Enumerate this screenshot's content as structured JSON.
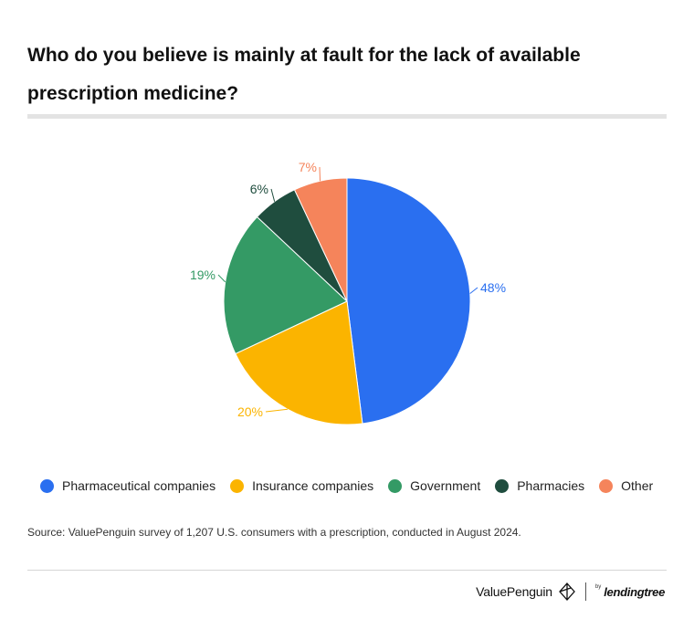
{
  "title": "Who do you believe is mainly at fault for the lack of available prescription medicine?",
  "chart_data": {
    "type": "pie",
    "title": "Who do you believe is mainly at fault for the lack of available prescription medicine?",
    "slices": [
      {
        "name": "Pharmaceutical companies",
        "value": 48,
        "label": "48%",
        "color": "#2a6ff0"
      },
      {
        "name": "Insurance companies",
        "value": 20,
        "label": "20%",
        "color": "#fbb400"
      },
      {
        "name": "Government",
        "value": 19,
        "label": "19%",
        "color": "#349a65"
      },
      {
        "name": "Pharmacies",
        "value": 6,
        "label": "6%",
        "color": "#1f4d3e"
      },
      {
        "name": "Other",
        "value": 7,
        "label": "7%",
        "color": "#f5845b"
      }
    ],
    "legend_position": "bottom"
  },
  "legend": [
    {
      "label": "Pharmaceutical companies",
      "color": "#2a6ff0"
    },
    {
      "label": "Insurance companies",
      "color": "#fbb400"
    },
    {
      "label": "Government",
      "color": "#349a65"
    },
    {
      "label": "Pharmacies",
      "color": "#1f4d3e"
    },
    {
      "label": "Other",
      "color": "#f5845b"
    }
  ],
  "source": "Source: ValuePenguin survey of 1,207 U.S. consumers with a prescription, conducted in August 2024.",
  "branding": {
    "valuepenguin": "ValuePenguin",
    "by": "by",
    "lendingtree": "lendingtree"
  }
}
